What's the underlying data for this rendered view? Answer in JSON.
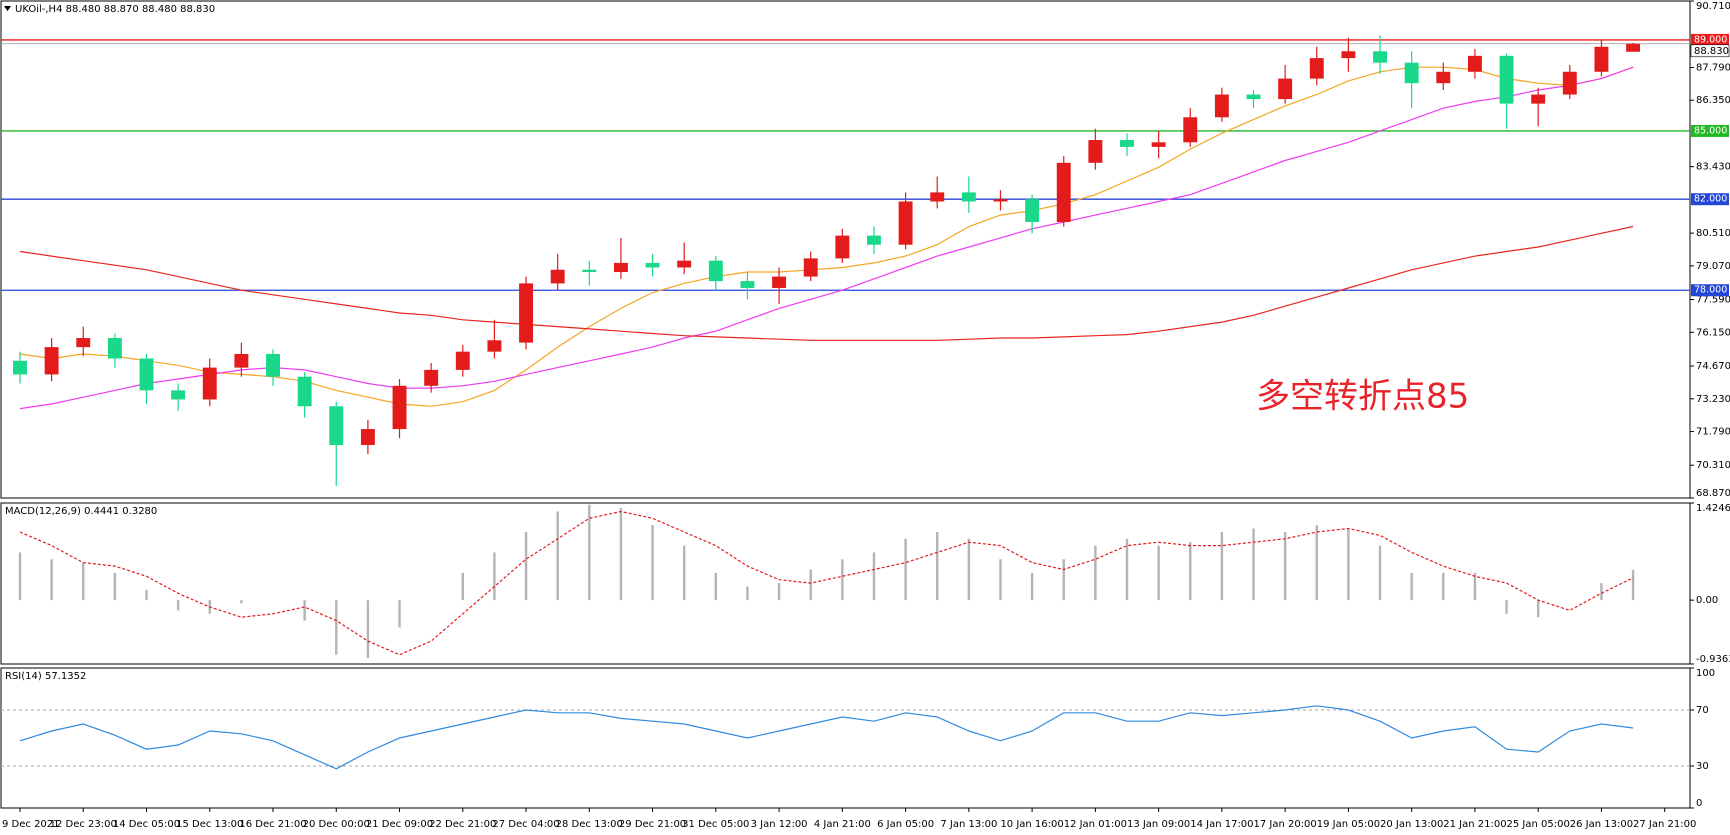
{
  "chart_data": [
    {
      "type": "candlestick",
      "title": "UKOil-,H4  88.480 88.870 88.480 88.830",
      "annotation": "多空转折点85",
      "xlim": [
        -0.6,
        52.8
      ],
      "ylim": [
        68.87,
        90.71
      ],
      "yticks": [
        {
          "value": 90.71,
          "label": "90.710"
        },
        {
          "value": 87.79,
          "label": "87.790"
        },
        {
          "value": 86.35,
          "label": "86.350"
        },
        {
          "value": 83.43,
          "label": "83.430"
        },
        {
          "value": 80.51,
          "label": "80.510"
        },
        {
          "value": 79.07,
          "label": "79.070"
        },
        {
          "value": 77.59,
          "label": "77.590"
        },
        {
          "value": 76.15,
          "label": "76.150"
        },
        {
          "value": 74.67,
          "label": "74.670"
        },
        {
          "value": 73.23,
          "label": "73.230"
        },
        {
          "value": 71.79,
          "label": "71.790"
        },
        {
          "value": 70.31,
          "label": "70.310"
        },
        {
          "value": 68.87,
          "label": "68.870"
        }
      ],
      "up_color": "#e31b1b",
      "down_color": "#19d88a",
      "open": [
        74.9,
        74.3,
        75.5,
        75.9,
        75.0,
        73.6,
        73.2,
        74.6,
        75.2,
        74.2,
        72.9,
        71.2,
        71.9,
        73.8,
        74.5,
        75.3,
        75.7,
        78.3,
        78.9,
        78.8,
        79.2,
        79.0,
        79.3,
        78.4,
        78.1,
        78.6,
        79.4,
        80.4,
        80.0,
        81.9,
        82.3,
        81.9,
        82.0,
        81.0,
        83.6,
        84.6,
        84.3,
        84.5,
        85.6,
        86.6,
        86.4,
        87.3,
        88.2,
        88.5,
        88.0,
        87.1,
        87.6,
        88.3,
        86.2,
        86.6,
        87.6,
        88.48
      ],
      "high": [
        75.3,
        75.9,
        76.4,
        76.1,
        75.2,
        73.9,
        75.0,
        75.7,
        75.4,
        74.4,
        73.1,
        72.3,
        74.1,
        74.8,
        75.6,
        76.7,
        78.6,
        79.6,
        79.3,
        80.3,
        79.6,
        80.1,
        79.5,
        78.8,
        79.0,
        79.7,
        80.7,
        80.8,
        82.3,
        83.0,
        83.0,
        82.4,
        82.2,
        83.9,
        85.1,
        84.9,
        85.0,
        86.0,
        86.9,
        86.8,
        87.9,
        88.7,
        89.1,
        89.2,
        88.5,
        88.0,
        88.6,
        88.4,
        86.9,
        87.9,
        89.0,
        88.87
      ],
      "low": [
        73.9,
        74.0,
        75.1,
        74.6,
        73.0,
        72.7,
        72.9,
        74.2,
        73.8,
        72.4,
        69.4,
        70.8,
        71.5,
        73.5,
        74.2,
        75.0,
        75.4,
        78.0,
        78.2,
        78.5,
        78.6,
        78.7,
        78.0,
        77.6,
        77.4,
        78.4,
        79.2,
        79.6,
        79.8,
        81.6,
        81.4,
        81.5,
        80.5,
        80.8,
        83.3,
        83.9,
        83.8,
        84.3,
        85.4,
        86.0,
        86.2,
        87.0,
        87.6,
        87.5,
        86.0,
        86.8,
        87.3,
        85.1,
        85.2,
        86.4,
        87.4,
        88.48
      ],
      "close": [
        74.3,
        75.5,
        75.9,
        75.0,
        73.6,
        73.2,
        74.6,
        75.2,
        74.2,
        72.9,
        71.2,
        71.9,
        73.8,
        74.5,
        75.3,
        75.8,
        78.3,
        78.9,
        78.8,
        79.2,
        79.0,
        79.3,
        78.4,
        78.1,
        78.6,
        79.4,
        80.4,
        80.0,
        81.9,
        82.3,
        81.9,
        82.0,
        81.0,
        83.6,
        84.6,
        84.3,
        84.5,
        85.6,
        86.6,
        86.4,
        87.3,
        88.2,
        88.5,
        88.0,
        87.1,
        87.6,
        88.3,
        86.2,
        86.6,
        87.6,
        88.7,
        88.83
      ],
      "moving_averages": [
        {
          "color": "#f5a623",
          "values": [
            75.2,
            75.0,
            75.2,
            75.1,
            74.9,
            74.7,
            74.4,
            74.3,
            74.2,
            74.0,
            73.6,
            73.3,
            73.0,
            72.9,
            73.1,
            73.6,
            74.5,
            75.5,
            76.4,
            77.2,
            77.9,
            78.3,
            78.6,
            78.8,
            78.8,
            78.9,
            79.0,
            79.2,
            79.5,
            80.0,
            80.8,
            81.3,
            81.5,
            81.8,
            82.2,
            82.8,
            83.4,
            84.2,
            84.9,
            85.5,
            86.1,
            86.6,
            87.2,
            87.6,
            87.8,
            87.8,
            87.7,
            87.3,
            87.1,
            87.0,
            87.3,
            87.8
          ]
        },
        {
          "color": "#ee3cf0",
          "values": [
            72.8,
            73.0,
            73.3,
            73.6,
            73.9,
            74.1,
            74.3,
            74.5,
            74.6,
            74.5,
            74.2,
            73.9,
            73.7,
            73.7,
            73.8,
            74.0,
            74.3,
            74.6,
            74.9,
            75.2,
            75.5,
            75.9,
            76.2,
            76.7,
            77.2,
            77.6,
            78.0,
            78.5,
            79.0,
            79.5,
            79.9,
            80.3,
            80.7,
            81.0,
            81.3,
            81.6,
            81.9,
            82.2,
            82.7,
            83.2,
            83.7,
            84.1,
            84.5,
            85.0,
            85.5,
            86.0,
            86.3,
            86.5,
            86.8,
            87.0,
            87.3,
            87.8
          ]
        },
        {
          "color": "#e8261f",
          "values": [
            79.7,
            79.5,
            79.3,
            79.1,
            78.9,
            78.6,
            78.3,
            78.0,
            77.8,
            77.6,
            77.4,
            77.2,
            77.0,
            76.9,
            76.7,
            76.6,
            76.5,
            76.4,
            76.3,
            76.2,
            76.1,
            76.0,
            75.95,
            75.9,
            75.85,
            75.8,
            75.8,
            75.8,
            75.8,
            75.8,
            75.85,
            75.9,
            75.9,
            75.95,
            76.0,
            76.05,
            76.2,
            76.4,
            76.6,
            76.9,
            77.3,
            77.7,
            78.1,
            78.5,
            78.9,
            79.2,
            79.5,
            79.7,
            79.9,
            80.2,
            80.5,
            80.8
          ]
        }
      ],
      "levels": [
        {
          "value": 89,
          "label": "89.000",
          "color": "#ee1c1c"
        },
        {
          "value": 85,
          "label": "85.000",
          "color": "#22b822"
        },
        {
          "value": 82,
          "label": "82.000",
          "color": "#2447d8"
        },
        {
          "value": 78,
          "label": "78.000",
          "color": "#2447d8"
        }
      ],
      "last_price": {
        "value": 88.83,
        "label": "88.830"
      }
    },
    {
      "type": "bar",
      "title": "MACD(12,26,9) 0.4441 0.3280",
      "xlim": [
        -0.6,
        52.8
      ],
      "ylim": [
        -0.9363,
        1.4246
      ],
      "yticks": [
        1.4246,
        {
          "value": 0,
          "label": "0.00"
        },
        -0.9363
      ],
      "color": "#b4b4b4",
      "signal_color": "#e31b1b",
      "values": [
        0.7,
        0.6,
        0.55,
        0.4,
        0.15,
        -0.15,
        -0.2,
        -0.05,
        0.0,
        -0.3,
        -0.8,
        -0.85,
        -0.4,
        0.0,
        0.4,
        0.7,
        1.0,
        1.3,
        1.4,
        1.35,
        1.1,
        0.8,
        0.4,
        0.2,
        0.25,
        0.45,
        0.6,
        0.7,
        0.9,
        1.0,
        0.9,
        0.6,
        0.4,
        0.6,
        0.8,
        0.9,
        0.8,
        0.85,
        1.0,
        1.05,
        1.0,
        1.1,
        1.05,
        0.8,
        0.4,
        0.4,
        0.4,
        -0.2,
        -0.25,
        0.0,
        0.25,
        0.4441
      ],
      "signal": [
        1.0,
        0.8,
        0.55,
        0.5,
        0.35,
        0.1,
        -0.1,
        -0.25,
        -0.2,
        -0.1,
        -0.3,
        -0.6,
        -0.8,
        -0.6,
        -0.2,
        0.2,
        0.6,
        0.9,
        1.2,
        1.3,
        1.2,
        1.0,
        0.8,
        0.5,
        0.3,
        0.25,
        0.35,
        0.45,
        0.55,
        0.7,
        0.85,
        0.8,
        0.55,
        0.45,
        0.6,
        0.8,
        0.85,
        0.8,
        0.8,
        0.85,
        0.9,
        1.0,
        1.05,
        0.95,
        0.7,
        0.5,
        0.35,
        0.25,
        0.0,
        -0.15,
        0.1,
        0.328
      ]
    },
    {
      "type": "line",
      "title": "RSI(14) 57.1352",
      "xlim": [
        -0.6,
        52.8
      ],
      "ylim": [
        0,
        100
      ],
      "yticks": [
        100,
        70,
        30,
        0
      ],
      "color": "#2f8be0",
      "values": [
        48,
        55,
        60,
        52,
        42,
        45,
        55,
        53,
        48,
        38,
        28,
        40,
        50,
        55,
        60,
        65,
        70,
        68,
        68,
        64,
        62,
        60,
        55,
        50,
        55,
        60,
        65,
        62,
        68,
        65,
        55,
        48,
        55,
        68,
        68,
        62,
        62,
        68,
        66,
        68,
        70,
        73,
        70,
        62,
        50,
        55,
        58,
        42,
        40,
        55,
        60,
        57.1352
      ],
      "xticks": [
        {
          "value": 0,
          "label": "9 Dec 2021"
        },
        {
          "value": 2,
          "label": "12 Dec 23:00"
        },
        {
          "value": 4,
          "label": "14 Dec 05:00"
        },
        {
          "value": 6,
          "label": "15 Dec 13:00"
        },
        {
          "value": 8,
          "label": "16 Dec 21:00"
        },
        {
          "value": 10,
          "label": "20 Dec 00:00"
        },
        {
          "value": 12,
          "label": "21 Dec 09:00"
        },
        {
          "value": 14,
          "label": "22 Dec 21:00"
        },
        {
          "value": 16,
          "label": "27 Dec 04:00"
        },
        {
          "value": 18,
          "label": "28 Dec 13:00"
        },
        {
          "value": 20,
          "label": "29 Dec 21:00"
        },
        {
          "value": 22,
          "label": "31 Dec 05:00"
        },
        {
          "value": 24,
          "label": "3 Jan 12:00"
        },
        {
          "value": 26,
          "label": "4 Jan 21:00"
        },
        {
          "value": 28,
          "label": "6 Jan 05:00"
        },
        {
          "value": 30,
          "label": "7 Jan 13:00"
        },
        {
          "value": 32,
          "label": "10 Jan 16:00"
        },
        {
          "value": 34,
          "label": "12 Jan 01:00"
        },
        {
          "value": 36,
          "label": "13 Jan 09:00"
        },
        {
          "value": 38,
          "label": "14 Jan 17:00"
        },
        {
          "value": 40,
          "label": "17 Jan 20:00"
        },
        {
          "value": 42,
          "label": "19 Jan 05:00"
        },
        {
          "value": 44,
          "label": "20 Jan 13:00"
        },
        {
          "value": 46,
          "label": "21 Jan 21:00"
        },
        {
          "value": 48,
          "label": "25 Jan 05:00"
        },
        {
          "value": 50,
          "label": "26 Jan 13:00"
        },
        {
          "value": 52,
          "label": "27 Jan 21:00"
        }
      ]
    }
  ]
}
